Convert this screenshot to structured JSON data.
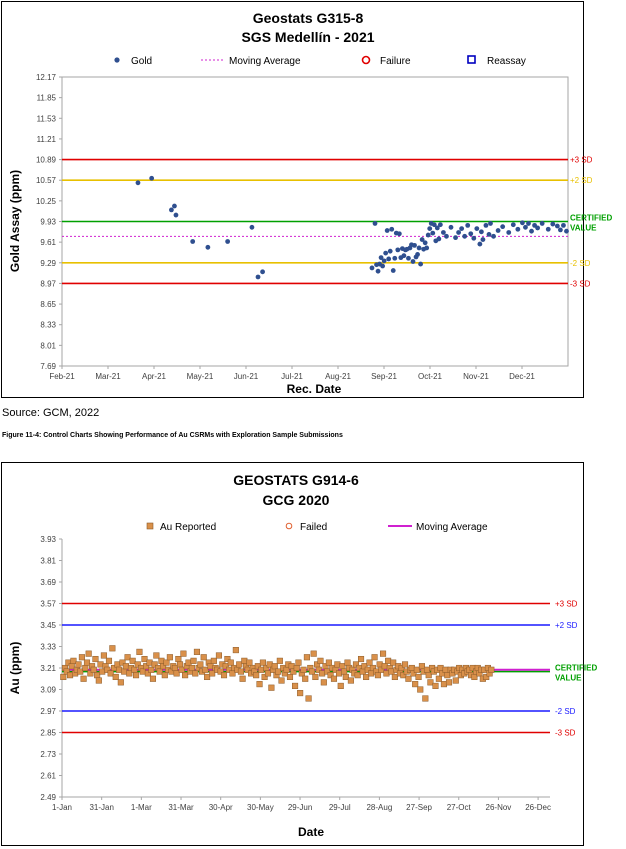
{
  "source_text": "Source: GCM, 2022",
  "caption_text": "Figure 11-4: Control Charts Showing Performance of Au CSRMs with Exploration Sample Submissions",
  "colors": {
    "sd3": "#e00000",
    "sd2_chart1": "#e8c000",
    "sd2_chart2": "#1a1aff",
    "certified": "#00a000",
    "moving_avg_chart1": "#d020d0",
    "moving_avg_chart2": "#d020d0",
    "gold_point": "#2f4f8f",
    "au_point": "#d9904a"
  },
  "chart_data": [
    {
      "type": "scatter",
      "title": "Geostats G315-8",
      "subtitle": "SGS Medellín - 2021",
      "xlabel": "Rec. Date",
      "ylabel": "Gold Assay (ppm)",
      "legend": [
        "Gold",
        "Moving Average",
        "Failure",
        "Reassay"
      ],
      "legend_placement": "top",
      "x_ticks": [
        "Feb-21",
        "Mar-21",
        "Apr-21",
        "May-21",
        "Jun-21",
        "Jul-21",
        "Aug-21",
        "Sep-21",
        "Oct-21",
        "Nov-21",
        "Dec-21"
      ],
      "xlim": [
        "2021-02-01",
        "2021-12-31"
      ],
      "y_ticks": [
        "12.17",
        "11.85",
        "11.53",
        "11.21",
        "10.89",
        "10.57",
        "10.25",
        "9.93",
        "9.61",
        "9.29",
        "8.97",
        "8.65",
        "8.33",
        "8.01",
        "7.69"
      ],
      "ylim": [
        7.69,
        12.17
      ],
      "reference_lines": [
        {
          "label": "+3 SD",
          "value": 10.89,
          "style": "sd3"
        },
        {
          "label": "+2 SD",
          "value": 10.57,
          "style": "sd2"
        },
        {
          "label": "CERTIFIED VALUE",
          "value": 9.93,
          "style": "certified"
        },
        {
          "label": "-2 SD",
          "value": 9.29,
          "style": "sd2"
        },
        {
          "label": "-3 SD",
          "value": 8.97,
          "style": "sd3"
        }
      ],
      "moving_average": 9.7,
      "series": [
        {
          "name": "Gold",
          "points": [
            [
              "2021-03-23",
              10.53
            ],
            [
              "2021-04-01",
              10.6
            ],
            [
              "2021-04-14",
              10.11
            ],
            [
              "2021-04-16",
              10.17
            ],
            [
              "2021-04-17",
              10.03
            ],
            [
              "2021-04-28",
              9.62
            ],
            [
              "2021-05-08",
              9.53
            ],
            [
              "2021-05-21",
              9.62
            ],
            [
              "2021-06-06",
              9.84
            ],
            [
              "2021-06-10",
              9.07
            ],
            [
              "2021-06-13",
              9.15
            ],
            [
              "2021-08-24",
              9.21
            ],
            [
              "2021-08-26",
              9.9
            ],
            [
              "2021-08-27",
              9.26
            ],
            [
              "2021-08-28",
              9.16
            ],
            [
              "2021-08-29",
              9.27
            ],
            [
              "2021-08-30",
              9.37
            ],
            [
              "2021-08-31",
              9.24
            ],
            [
              "2021-09-01",
              9.32
            ],
            [
              "2021-09-02",
              9.44
            ],
            [
              "2021-09-03",
              9.79
            ],
            [
              "2021-09-04",
              9.35
            ],
            [
              "2021-09-05",
              9.47
            ],
            [
              "2021-09-06",
              9.81
            ],
            [
              "2021-09-07",
              9.17
            ],
            [
              "2021-09-08",
              9.36
            ],
            [
              "2021-09-09",
              9.75
            ],
            [
              "2021-09-10",
              9.49
            ],
            [
              "2021-09-11",
              9.74
            ],
            [
              "2021-09-12",
              9.37
            ],
            [
              "2021-09-13",
              9.51
            ],
            [
              "2021-09-14",
              9.4
            ],
            [
              "2021-09-15",
              9.49
            ],
            [
              "2021-09-16",
              9.5
            ],
            [
              "2021-09-17",
              9.36
            ],
            [
              "2021-09-18",
              9.52
            ],
            [
              "2021-09-19",
              9.57
            ],
            [
              "2021-09-20",
              9.31
            ],
            [
              "2021-09-21",
              9.56
            ],
            [
              "2021-09-22",
              9.38
            ],
            [
              "2021-09-23",
              9.42
            ],
            [
              "2021-09-24",
              9.52
            ],
            [
              "2021-09-25",
              9.27
            ],
            [
              "2021-09-26",
              9.65
            ],
            [
              "2021-09-27",
              9.5
            ],
            [
              "2021-09-28",
              9.6
            ],
            [
              "2021-09-29",
              9.52
            ],
            [
              "2021-09-30",
              9.72
            ],
            [
              "2021-10-01",
              9.82
            ],
            [
              "2021-10-02",
              9.9
            ],
            [
              "2021-10-03",
              9.75
            ],
            [
              "2021-10-04",
              9.88
            ],
            [
              "2021-10-05",
              9.63
            ],
            [
              "2021-10-06",
              9.83
            ],
            [
              "2021-10-07",
              9.66
            ],
            [
              "2021-10-08",
              9.88
            ],
            [
              "2021-10-10",
              9.76
            ],
            [
              "2021-10-12",
              9.7
            ],
            [
              "2021-10-15",
              9.84
            ],
            [
              "2021-10-18",
              9.68
            ],
            [
              "2021-10-20",
              9.76
            ],
            [
              "2021-10-22",
              9.82
            ],
            [
              "2021-10-24",
              9.7
            ],
            [
              "2021-10-26",
              9.87
            ],
            [
              "2021-10-28",
              9.74
            ],
            [
              "2021-10-30",
              9.67
            ],
            [
              "2021-11-01",
              9.82
            ],
            [
              "2021-11-03",
              9.58
            ],
            [
              "2021-11-04",
              9.77
            ],
            [
              "2021-11-05",
              9.65
            ],
            [
              "2021-11-07",
              9.87
            ],
            [
              "2021-11-09",
              9.73
            ],
            [
              "2021-11-10",
              9.9
            ],
            [
              "2021-11-12",
              9.7
            ],
            [
              "2021-11-15",
              9.79
            ],
            [
              "2021-11-18",
              9.85
            ],
            [
              "2021-11-22",
              9.76
            ],
            [
              "2021-11-25",
              9.88
            ],
            [
              "2021-11-28",
              9.81
            ],
            [
              "2021-12-01",
              9.91
            ],
            [
              "2021-12-03",
              9.84
            ],
            [
              "2021-12-05",
              9.9
            ],
            [
              "2021-12-07",
              9.78
            ],
            [
              "2021-12-09",
              9.87
            ],
            [
              "2021-12-11",
              9.83
            ],
            [
              "2021-12-14",
              9.9
            ],
            [
              "2021-12-18",
              9.81
            ],
            [
              "2021-12-21",
              9.89
            ],
            [
              "2021-12-24",
              9.86
            ],
            [
              "2021-12-26",
              9.8
            ],
            [
              "2021-12-28",
              9.87
            ],
            [
              "2021-12-30",
              9.78
            ]
          ]
        }
      ]
    },
    {
      "type": "scatter",
      "title": "GEOSTATS G914-6",
      "subtitle": "GCG 2020",
      "xlabel": "Date",
      "ylabel": "Au (ppm)",
      "legend": [
        "Au Reported",
        "Failed",
        "Moving Average"
      ],
      "legend_placement": "top",
      "x_ticks": [
        "1-Jan",
        "31-Jan",
        "1-Mar",
        "31-Mar",
        "30-Apr",
        "30-May",
        "29-Jun",
        "29-Jul",
        "28-Aug",
        "27-Sep",
        "27-Oct",
        "26-Nov",
        "26-Dec"
      ],
      "xlim": [
        "2020-01-01",
        "2021-01-10"
      ],
      "y_ticks": [
        "3.93",
        "3.81",
        "3.69",
        "3.57",
        "3.45",
        "3.33",
        "3.21",
        "3.09",
        "2.97",
        "2.85",
        "2.73",
        "2.61",
        "2.49"
      ],
      "ylim": [
        2.49,
        3.93
      ],
      "reference_lines": [
        {
          "label": "+3 SD",
          "value": 3.57,
          "style": "sd3"
        },
        {
          "label": "+2 SD",
          "value": 3.45,
          "style": "sd2"
        },
        {
          "label": "CERTIFIED VALUE",
          "value": 3.19,
          "style": "certified"
        },
        {
          "label": "-2 SD",
          "value": 2.97,
          "style": "sd2"
        },
        {
          "label": "-3 SD",
          "value": 2.85,
          "style": "sd3"
        }
      ],
      "moving_average": 3.2,
      "series": [
        {
          "name": "Au Reported",
          "x_start": "2020-01-02",
          "x_step_days": 1.3,
          "values": [
            3.16,
            3.21,
            3.19,
            3.24,
            3.17,
            3.22,
            3.25,
            3.18,
            3.2,
            3.23,
            3.19,
            3.27,
            3.15,
            3.21,
            3.24,
            3.29,
            3.18,
            3.22,
            3.2,
            3.26,
            3.17,
            3.14,
            3.23,
            3.19,
            3.28,
            3.22,
            3.2,
            3.25,
            3.18,
            3.32,
            3.21,
            3.16,
            3.23,
            3.2,
            3.13,
            3.24,
            3.19,
            3.22,
            3.27,
            3.18,
            3.21,
            3.25,
            3.2,
            3.17,
            3.23,
            3.3,
            3.21,
            3.19,
            3.26,
            3.22,
            3.18,
            3.24,
            3.2,
            3.15,
            3.23,
            3.28,
            3.21,
            3.19,
            3.25,
            3.22,
            3.17,
            3.24,
            3.2,
            3.27,
            3.19,
            3.22,
            3.21,
            3.18,
            3.26,
            3.23,
            3.2,
            3.29,
            3.17,
            3.22,
            3.24,
            3.19,
            3.21,
            3.25,
            3.18,
            3.3,
            3.21,
            3.23,
            3.19,
            3.27,
            3.2,
            3.16,
            3.24,
            3.22,
            3.18,
            3.25,
            3.21,
            3.2,
            3.28,
            3.19,
            3.23,
            3.17,
            3.22,
            3.26,
            3.2,
            3.24,
            3.18,
            3.21,
            3.31,
            3.2,
            3.23,
            3.19,
            3.15,
            3.25,
            3.22,
            3.2,
            3.24,
            3.18,
            3.21,
            3.19,
            3.17,
            3.22,
            3.12,
            3.2,
            3.24,
            3.16,
            3.21,
            3.18,
            3.23,
            3.1,
            3.2,
            3.22,
            3.17,
            3.19,
            3.25,
            3.14,
            3.21,
            3.18,
            3.2,
            3.23,
            3.16,
            3.22,
            3.19,
            3.11,
            3.21,
            3.24,
            3.07,
            3.18,
            3.2,
            3.15,
            3.27,
            3.04,
            3.21,
            3.19,
            3.29,
            3.16,
            3.23,
            3.2,
            3.25,
            3.18,
            3.13,
            3.22,
            3.19,
            3.24,
            3.17,
            3.21,
            3.15,
            3.2,
            3.23,
            3.18,
            3.11,
            3.22,
            3.19,
            3.16,
            3.24,
            3.21,
            3.14,
            3.2,
            3.18,
            3.23,
            3.17,
            3.21,
            3.26,
            3.19,
            3.22,
            3.16,
            3.2,
            3.24,
            3.18,
            3.21,
            3.27,
            3.19,
            3.17,
            3.23,
            3.2,
            3.29,
            3.22,
            3.18,
            3.25,
            3.21,
            3.19,
            3.24,
            3.16,
            3.2,
            3.22,
            3.18,
            3.21,
            3.17,
            3.23,
            3.19,
            3.15,
            3.2,
            3.21,
            3.18,
            3.12,
            3.2,
            3.16,
            3.09,
            3.22,
            3.19,
            3.04,
            3.2,
            3.17,
            3.13,
            3.21,
            3.19,
            3.11,
            3.2,
            3.15,
            3.21,
            3.18,
            3.12,
            3.2,
            3.17,
            3.13,
            3.2,
            3.18,
            3.2,
            3.14,
            3.19,
            3.21,
            3.17,
            3.2,
            3.18,
            3.21,
            3.19,
            3.2,
            3.17,
            3.21,
            3.16,
            3.19,
            3.21,
            3.18,
            3.2,
            3.15,
            3.2,
            3.16,
            3.21,
            3.18,
            3.2
          ]
        }
      ]
    }
  ]
}
